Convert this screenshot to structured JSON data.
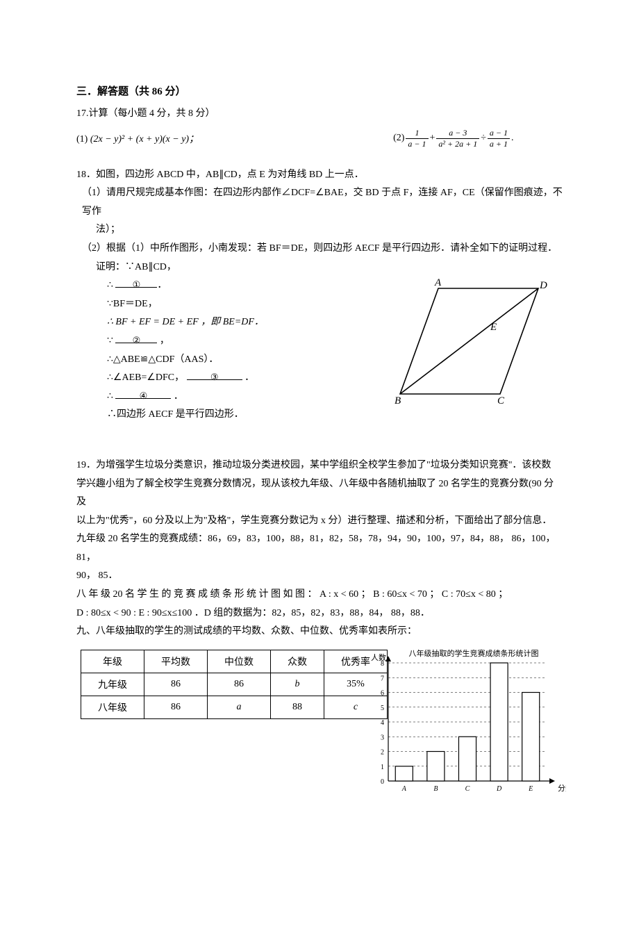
{
  "section": {
    "title": "三．解答题（共 86 分）"
  },
  "q17": {
    "intro": "17.计算（每小题 4 分，共 8 分）",
    "part1_prefix": "(1)",
    "part1_expr": "(2x − y)² + (x + y)(x − y)；",
    "part2_prefix": "(2)",
    "frac1_num": "1",
    "frac1_den": "a − 1",
    "plus": "+",
    "frac2_num": "a − 3",
    "frac2_den": "a² + 2a + 1",
    "div": "÷",
    "frac3_num": "a − 1",
    "frac3_den": "a + 1",
    "period": "."
  },
  "q18": {
    "stem": "18．如图，四边形 ABCD 中，AB∥CD，点 E 为对角线 BD 上一点．",
    "p1": "（1）请用尺规完成基本作图：在四边形内部作∠DCF=∠BAE，交 BD 于点 F，连接 AF，CE（保留作图痕迹，不写作",
    "p1b": "法）；",
    "p2": "（2）根据（1）中所作图形，小南发现：若 BF＝DE，则四边形 AECF 是平行四边形．请补全如下的证明过程．",
    "proof_label": "证明：∵AB∥CD，",
    "step1a": "∴",
    "step1blank": "①",
    "step2": "∵BF＝DE，",
    "step3": "∴ BF + EF = DE + EF ，即 BE=DF．",
    "step4a": "∵",
    "step4blank": "②",
    "step4b": "，",
    "step5": "∴△ABE≌△CDF（AAS）．",
    "step6a": "∴∠AEB=∠DFC，",
    "step6blank": "③",
    "step6b": "．",
    "step7a": "∴",
    "step7blank": "④",
    "step7b": "．",
    "step8": "∴四边形 AECF 是平行四边形．",
    "figure": {
      "A": "A",
      "B": "B",
      "C": "C",
      "D": "D",
      "E": "E",
      "stroke": "#000000",
      "fill": "none"
    }
  },
  "q19": {
    "l1": "19．为增强学生垃圾分类意识，推动垃圾分类进校园，某中学组织全校学生参加了\"垃圾分类知识竞赛\"．该校数",
    "l2": "学兴趣小组为了解全校学生竞赛分数情况，现从该校九年级、八年级中各随机抽取了 20 名学生的竞赛分数(90 分及",
    "l3": "以上为\"优秀\"，60 分及以上为\"及格\"，学生竞赛分数记为 x 分）进行整理、描述和分析，下面给出了部分信息．",
    "l4": "九年级 20 名学生的竞赛成绩：86，69，83，100，88，81，82，58，78，94，90，100，97，84，88， 86，100， 81，",
    "l5": "90， 85．",
    "l6": "八 年 级 20 名 学 生 的 竞 赛 成 绩 条 形 统 计 图 如 图 ： A : x < 60  ；  B : 60≤x < 70  ；  C : 70≤x < 80  ；",
    "l7": "D : 80≤x < 90 : E : 90≤x≤100 ．D 组的数据为：82，85，82，83，88，84， 88，88．",
    "l8": "九、八年级抽取的学生的测试成绩的平均数、众数、中位数、优秀率如表所示：",
    "table": {
      "headers": [
        "年级",
        "平均数",
        "中位数",
        "众数",
        "优秀率"
      ],
      "rows": [
        [
          "九年级",
          "86",
          "86",
          "b",
          "35%"
        ],
        [
          "八年级",
          "86",
          "a",
          "88",
          "c"
        ]
      ]
    },
    "chart": {
      "title": "八年级抽取的学生竞赛成绩条形统计图",
      "ylabel": "人数",
      "xlabel": "分数",
      "categories": [
        "A",
        "B",
        "C",
        "D",
        "E"
      ],
      "values": [
        1,
        2,
        3,
        8,
        6
      ],
      "ymax": 8,
      "ytick": 1,
      "bar_color": "#ffffff",
      "bar_border": "#000000",
      "grid_color": "#000000",
      "axis_color": "#000000",
      "title_fontsize": 11,
      "label_fontsize": 11,
      "tick_fontsize": 10
    }
  }
}
